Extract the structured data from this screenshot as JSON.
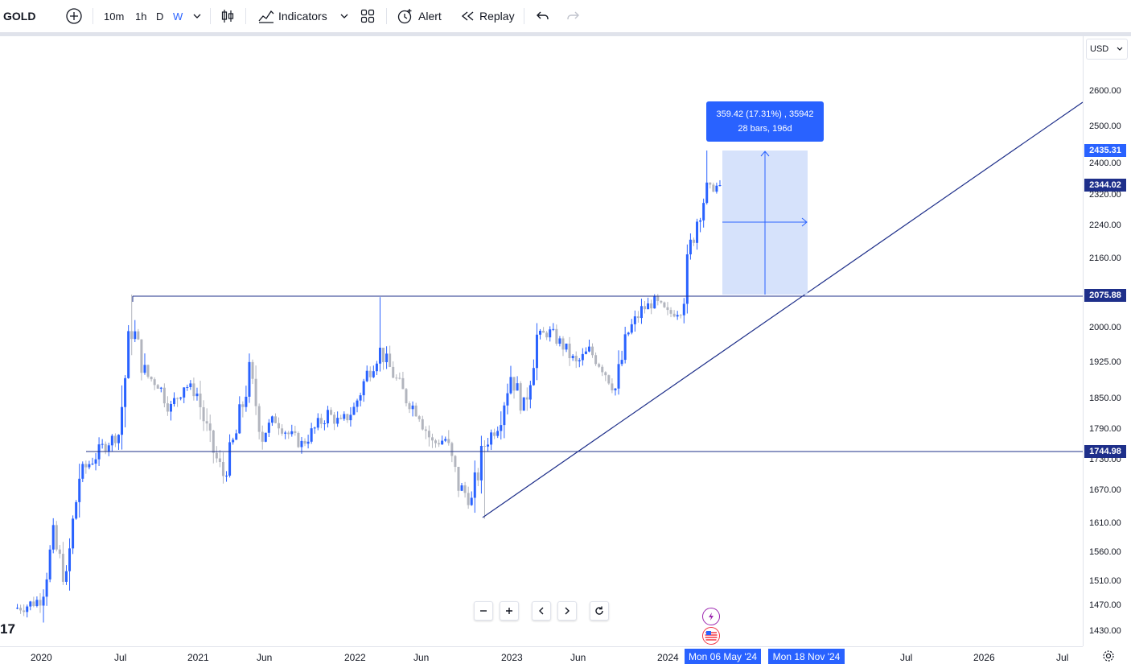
{
  "toolbar": {
    "symbol": "GOLD",
    "intervals": [
      {
        "label": "10m",
        "active": false
      },
      {
        "label": "1h",
        "active": false
      },
      {
        "label": "D",
        "active": false
      },
      {
        "label": "W",
        "active": true
      }
    ],
    "indicators_label": "Indicators",
    "alert_label": "Alert",
    "replay_label": "Replay"
  },
  "price_scale": {
    "currency": "USD",
    "ticks": [
      "2600.00",
      "2500.00",
      "2400.00",
      "2320.00",
      "2240.00",
      "2160.00",
      "2000.00",
      "1925.00",
      "1850.00",
      "1790.00",
      "1730.00",
      "1670.00",
      "1610.00",
      "1560.00",
      "1510.00",
      "1470.00",
      "1430.00"
    ],
    "labels": {
      "high": "2435.31",
      "last": "2344.02",
      "resistance": "2075.88",
      "support": "1744.98"
    }
  },
  "time_axis": {
    "ticks": [
      "2020",
      "Jul",
      "2021",
      "Jun",
      "2022",
      "Jun",
      "2023",
      "Jun",
      "2024",
      "Jul",
      "2026",
      "Jul"
    ],
    "range_start_label": "Mon 06 May '24",
    "range_end_label": "Mon 18 Nov '24"
  },
  "measure": {
    "line1": "359.42 (17.31%) , 35942",
    "line2": "28 bars, 196d"
  },
  "logo_fragment": "17",
  "colors": {
    "up": "#2962ff",
    "down": "#b2b5be",
    "line": "#1e2f8a",
    "accent": "#2962ff",
    "measure_fill": "#d1dffb"
  },
  "chart_data": {
    "type": "candlestick",
    "symbol": "GOLD",
    "interval": "W",
    "x_start": "2020",
    "x_end": "2024-05",
    "ylim": [
      1400,
      2650
    ],
    "horizontal_lines": [
      2075.88,
      1744.98
    ],
    "trendline": {
      "from": [
        "2022-11",
        1618
      ],
      "to": [
        "2026-09",
        2585
      ]
    },
    "key_points": [
      {
        "x": "2020-08",
        "high": 2075.88
      },
      {
        "x": "2022-03",
        "high": 2070
      },
      {
        "x": "2022-11",
        "low": 1618
      },
      {
        "x": "2024-04",
        "high": 2435.31
      },
      {
        "x": "2024-05",
        "close": 2344.02
      }
    ],
    "path_close": [
      [
        "2019-11",
        1465
      ],
      [
        "2019-12",
        1470
      ],
      [
        "2020-01",
        1480
      ],
      [
        "2020-02",
        1580
      ],
      [
        "2020-03",
        1510
      ],
      [
        "2020-04",
        1700
      ],
      [
        "2020-05",
        1730
      ],
      [
        "2020-06",
        1760
      ],
      [
        "2020-07",
        1780
      ],
      [
        "2020-08",
        2010
      ],
      [
        "2020-09",
        1900
      ],
      [
        "2020-10",
        1880
      ],
      [
        "2020-11",
        1830
      ],
      [
        "2020-12",
        1880
      ],
      [
        "2021-01",
        1860
      ],
      [
        "2021-02",
        1760
      ],
      [
        "2021-03",
        1700
      ],
      [
        "2021-04",
        1780
      ],
      [
        "2021-05",
        1900
      ],
      [
        "2021-06",
        1780
      ],
      [
        "2021-07",
        1810
      ],
      [
        "2021-08",
        1780
      ],
      [
        "2021-09",
        1760
      ],
      [
        "2021-10",
        1790
      ],
      [
        "2021-11",
        1820
      ],
      [
        "2021-12",
        1800
      ],
      [
        "2022-01",
        1830
      ],
      [
        "2022-02",
        1900
      ],
      [
        "2022-03",
        1950
      ],
      [
        "2022-04",
        1900
      ],
      [
        "2022-05",
        1850
      ],
      [
        "2022-06",
        1820
      ],
      [
        "2022-07",
        1760
      ],
      [
        "2022-08",
        1770
      ],
      [
        "2022-09",
        1680
      ],
      [
        "2022-10",
        1650
      ],
      [
        "2022-11",
        1760
      ],
      [
        "2022-12",
        1800
      ],
      [
        "2023-01",
        1900
      ],
      [
        "2023-02",
        1830
      ],
      [
        "2023-03",
        1980
      ],
      [
        "2023-04",
        1990
      ],
      [
        "2023-05",
        1960
      ],
      [
        "2023-06",
        1920
      ],
      [
        "2023-07",
        1950
      ],
      [
        "2023-08",
        1915
      ],
      [
        "2023-09",
        1870
      ],
      [
        "2023-10",
        1990
      ],
      [
        "2023-11",
        2040
      ],
      [
        "2023-12",
        2060
      ],
      [
        "2024-01",
        2030
      ],
      [
        "2024-02",
        2040
      ],
      [
        "2024-03",
        2230
      ],
      [
        "2024-04",
        2330
      ],
      [
        "2024-05",
        2344
      ]
    ]
  }
}
